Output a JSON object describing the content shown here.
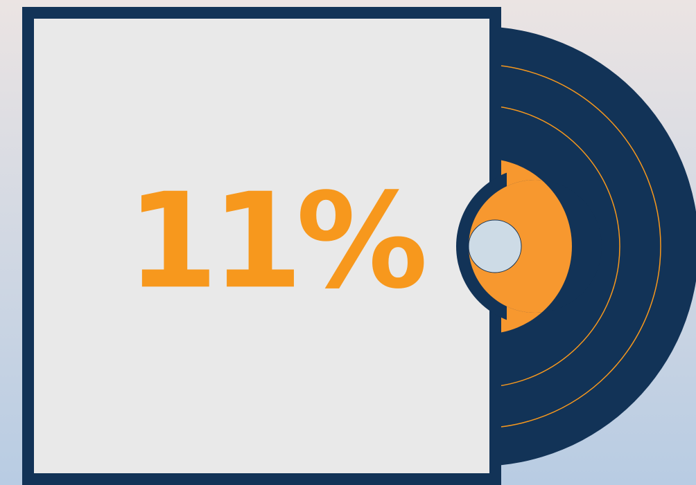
{
  "label": "11%"
}
